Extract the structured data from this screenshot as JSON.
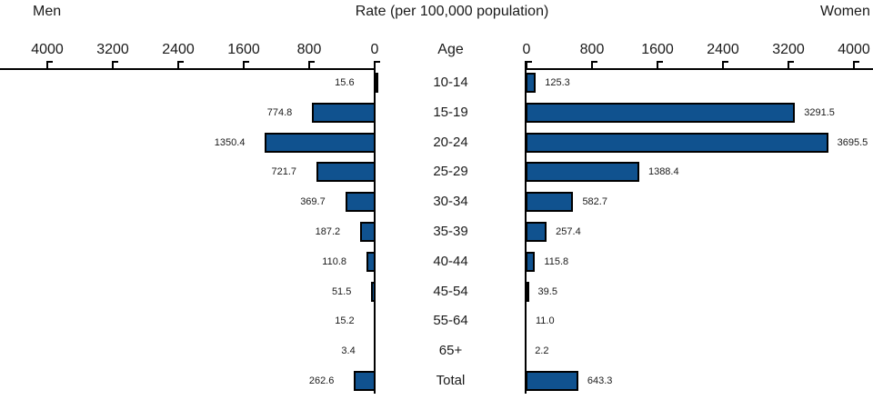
{
  "header": {
    "men": "Men",
    "title": "Rate (per 100,000 population)",
    "women": "Women"
  },
  "axis": {
    "age_label": "Age",
    "left_ticks": [
      "4000",
      "3200",
      "2400",
      "1600",
      "800",
      "0"
    ],
    "right_ticks": [
      "0",
      "800",
      "1600",
      "2400",
      "3200",
      "4000"
    ]
  },
  "chart_data": {
    "type": "bar",
    "orientation": "horizontal-back-to-back-pyramid",
    "title": "Rate (per 100,000 population)",
    "left_header": "Men",
    "right_header": "Women",
    "center_axis_label": "Age",
    "categories": [
      "10-14",
      "15-19",
      "20-24",
      "25-29",
      "30-34",
      "35-39",
      "40-44",
      "45-54",
      "55-64",
      "65+",
      "Total"
    ],
    "series": [
      {
        "name": "Men",
        "side": "left",
        "values": [
          15.6,
          774.8,
          1350.4,
          721.7,
          369.7,
          187.2,
          110.8,
          51.5,
          15.2,
          3.4,
          262.6
        ]
      },
      {
        "name": "Women",
        "side": "right",
        "values": [
          125.3,
          3291.5,
          3695.5,
          1388.4,
          582.7,
          257.4,
          115.8,
          39.5,
          11.0,
          2.2,
          643.3
        ]
      }
    ],
    "axis_range": [
      0,
      4000
    ],
    "tick_step": 800,
    "value_labels_shown": true,
    "value_label_decimals": 1,
    "bar_color": "#10528F",
    "bar_border_color": "#000000",
    "grid": false,
    "legend": "none"
  }
}
